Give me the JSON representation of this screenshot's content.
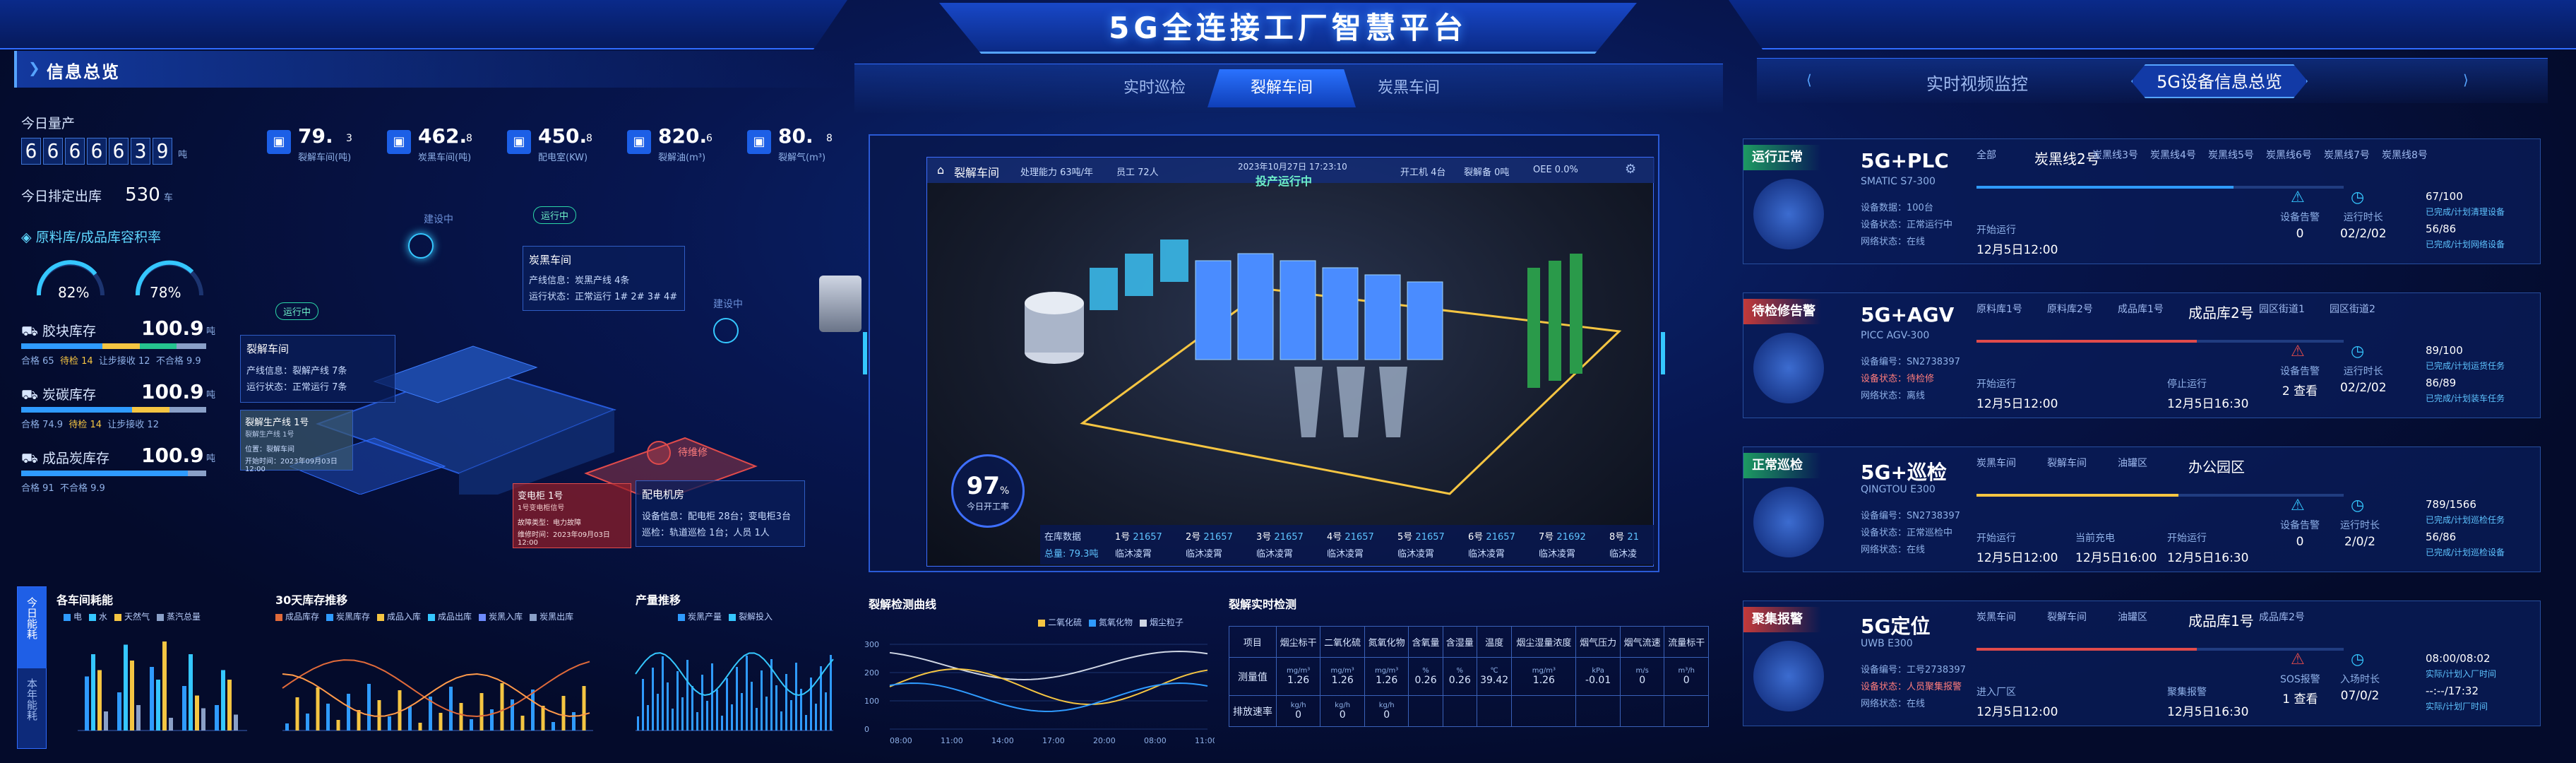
{
  "header": {
    "title": "5G全连接工厂智慧平台"
  },
  "left": {
    "panel_title": "信息总览",
    "today_output_label": "今日量产",
    "today_output_digits": [
      "6",
      "6",
      "6",
      "6",
      "6",
      "3",
      "9"
    ],
    "today_output_unit": "吨",
    "today_plan_label": "今日排定出库",
    "today_plan_value": "530",
    "today_plan_unit": "车",
    "stock_ratio_title": "原料库/成品库容积率",
    "ratio_raw": "82%",
    "ratio_product": "78%",
    "coke_label": "胶块库存",
    "coke_value": "100.9",
    "coke_unit": "吨",
    "coke_legend": [
      "合格 65",
      "待检 14",
      "让步接收 12",
      "不合格 9.9"
    ],
    "carbon_label": "炭碳库存",
    "carbon_value": "100.9",
    "carbon_unit": "吨",
    "carbon_legend": [
      "合格 74.9",
      "待检 14",
      "让步接收 12"
    ],
    "product_label": "成品炭库存",
    "product_value": "100.9",
    "product_unit": "吨",
    "product_legend": [
      "合格 91",
      "不合格 9.9"
    ],
    "kpis": [
      {
        "value": "79.",
        "sub": "3",
        "label": "裂解车间(吨)"
      },
      {
        "value": "462.",
        "sub": "8",
        "label": "炭黑车间(吨)"
      },
      {
        "value": "450.",
        "sub": "8",
        "label": "配电室(KW)"
      },
      {
        "value": "820.",
        "sub": "6",
        "label": "裂解油(m³)"
      },
      {
        "value": "80.",
        "sub": "8",
        "label": "裂解气(m³)"
      }
    ],
    "map": {
      "building_label_1": "建设中",
      "building_label_2": "建设中",
      "status_running": "运行中",
      "status_running2": "运行中",
      "status_warning": "待维修",
      "carbon_card": {
        "title": "炭黑车间",
        "line1": "产线信息：炭黑产线 4条",
        "line2": "运行状态：正常运行 1# 2# 3# 4#"
      },
      "pyro_card": {
        "title": "裂解车间",
        "line1": "产线信息：裂解产线 7条",
        "line2": "运行状态：正常运行 7条"
      },
      "line_card": {
        "title": "裂解生产线 1号",
        "sub": "裂解生产线 1号",
        "l1": "位置：裂解车间",
        "l2": "开始时间：2023年09月03日 12:00"
      },
      "trans_card": {
        "title": "变电柜 1号",
        "sub": "1号变电柜信号",
        "l1": "故障类型：电力故障",
        "l2": "维修时间：2023年09月03日 12:00"
      },
      "power_card": {
        "title": "配电机房",
        "line1": "设备信息：配电柜 28台；变电柜3台",
        "line2": "巡检：轨道巡检 1台；人员 1人"
      }
    },
    "energy": {
      "title": "各车间耗能",
      "side_tabs": [
        "今日能耗",
        "本年能耗"
      ],
      "legend": [
        "电",
        "水",
        "天然气",
        "蒸汽总量"
      ]
    },
    "trend30": {
      "title": "30天库存推移",
      "legend": [
        "成品库存",
        "炭黑库存",
        "成品入库",
        "成品出库",
        "炭黑入库",
        "炭黑出库"
      ]
    },
    "output_trend": {
      "title": "产量推移",
      "legend": [
        "炭黑产量",
        "裂解投入"
      ]
    }
  },
  "center": {
    "tabs": [
      "实时巡检",
      "裂解车间",
      "炭黑车间"
    ],
    "scene_header": {
      "workshop": "裂解车间",
      "capacity": "处理能力 63吨/年",
      "staff": "员工 72人",
      "datetime": "2023年10月27日 17:23:10",
      "running_state": "投产运行中",
      "open_machines": "开工机 4台",
      "stopped": "裂解备 0吨",
      "oee": "OEE 0.0%"
    },
    "gauge_value": "97",
    "gauge_unit": "%",
    "gauge_label": "今日开工率",
    "bottom_strip": {
      "label_top": "在库数据",
      "label_bottom": "总量: 79.3吨",
      "lines": [
        {
          "name": "1号",
          "value": "21657",
          "state": "临沐凌霄"
        },
        {
          "name": "2号",
          "value": "21657",
          "state": "临沐凌霄"
        },
        {
          "name": "3号",
          "value": "21657",
          "state": "临沐凌霄"
        },
        {
          "name": "4号",
          "value": "21657",
          "state": "临沐凌霄"
        },
        {
          "name": "5号",
          "value": "21657",
          "state": "临沐凌霄"
        },
        {
          "name": "6号",
          "value": "21657",
          "state": "临沐凌霄"
        },
        {
          "name": "7号",
          "value": "21692",
          "state": "临沐凌霄"
        },
        {
          "name": "8号",
          "value": "21",
          "state": "临沐凌"
        }
      ]
    },
    "pyro_curve": {
      "title": "裂解检测曲线",
      "legend": [
        "二氧化硫",
        "氮氧化物",
        "烟尘粒子"
      ],
      "x_ticks": [
        "08:00",
        "11:00",
        "14:00",
        "17:00",
        "20:00",
        "08:00",
        "11:00"
      ],
      "y_ticks": [
        "300",
        "200",
        "100",
        "0"
      ]
    },
    "detect": {
      "title": "裂解实时检测",
      "columns": [
        "项目",
        "烟尘标干",
        "二氧化硫",
        "氮氧化物",
        "含氧量",
        "含湿量",
        "温度",
        "烟尘湿量浓度",
        "烟气压力",
        "烟气流速",
        "流量标干"
      ],
      "units": [
        "",
        "mg/m³",
        "mg/m³",
        "mg/m³",
        "%",
        "%",
        "℃",
        "mg/m³",
        "kPa",
        "m/s",
        "m³/h"
      ],
      "row_measure": [
        "测量值",
        "1.26",
        "1.26",
        "1.26",
        "0.26",
        "0.26",
        "39.42",
        "1.26",
        "-0.01",
        "0",
        "0"
      ],
      "row_emission": [
        "排放速率",
        "0",
        "0",
        "0",
        "",
        "",
        "",
        "",
        "",
        "",
        ""
      ],
      "emission_units": [
        "",
        "kg/h",
        "kg/h",
        "kg/h",
        "",
        "",
        "",
        "",
        "",
        "",
        ""
      ]
    }
  },
  "right": {
    "tabs": [
      "实时视频监控",
      "5G设备信息总览"
    ],
    "devices": [
      {
        "badge": "运行正常",
        "title": "5G+PLC",
        "model": "SMATIC S7-300",
        "nav": [
          "全部",
          "炭黑线2号",
          "炭黑线3号",
          "炭黑线4号",
          "炭黑线5号",
          "炭黑线6号",
          "炭黑线7号",
          "炭黑线8号"
        ],
        "rows": [
          "设备数据：100台",
          "设备状态：正常运行中",
          "网络状态：在线"
        ],
        "start_label": "开始运行",
        "start_value": "12月5日12:00",
        "kv1_label": "设备告警",
        "kv1_value": "0",
        "kv2_label": "运行时长",
        "kv2_value": "02/2/02",
        "stats": [
          "67/100",
          "已完成/计划清理设备",
          "56/86",
          "已完成/计划网络设备"
        ]
      },
      {
        "badge": "待检修告警",
        "title": "5G+AGV",
        "model": "PICC AGV-300",
        "nav": [
          "原料库1号",
          "原料库2号",
          "成品库1号",
          "成品库2号",
          "园区街道1",
          "园区街道2"
        ],
        "rows": [
          "设备编号：SN2738397",
          "设备状态：待检修",
          "网络状态：离线"
        ],
        "start_label": "开始运行",
        "start_value": "12月5日12:00",
        "stop_label": "停止运行",
        "stop_value": "12月5日16:30",
        "kv1_label": "设备告警",
        "kv1_value": "2 查看",
        "kv2_label": "运行时长",
        "kv2_value": "02/2/02",
        "stats": [
          "89/100",
          "已完成/计划运货任务",
          "86/89",
          "已完成/计划装车任务"
        ]
      },
      {
        "badge": "正常巡检",
        "title": "5G+巡检",
        "model": "QINGTOU E300",
        "nav": [
          "炭黑车间",
          "裂解车间",
          "油罐区",
          "办公园区"
        ],
        "rows": [
          "设备编号：SN2738397",
          "设备状态：正常巡检中",
          "网络状态：在线"
        ],
        "start_label": "开始运行",
        "start_value": "12月5日12:00",
        "mid_label": "当前充电",
        "mid_value": "12月5日16:00",
        "stop_label": "开始运行",
        "stop_value": "12月5日16:30",
        "kv1_label": "设备告警",
        "kv1_value": "0",
        "kv2_label": "运行时长",
        "kv2_value": "2/0/2",
        "stats": [
          "789/1566",
          "已完成/计划巡检任务",
          "56/86",
          "已完成/计划巡检设备"
        ]
      },
      {
        "badge": "聚集报警",
        "title": "5G定位",
        "model": "UWB E300",
        "nav": [
          "炭黑车间",
          "裂解车间",
          "油罐区",
          "成品库1号",
          "成品库2号"
        ],
        "rows": [
          "设备编号：工号2738397",
          "设备状态：人员聚集报警",
          "网络状态：在线"
        ],
        "start_label": "进入厂区",
        "start_value": "12月5日12:00",
        "stop_label": "聚集报警",
        "stop_value": "12月5日16:30",
        "kv1_label": "SOS报警",
        "kv1_value": "1 查看",
        "kv2_label": "入场时长",
        "kv2_value": "07/0/2",
        "stats": [
          "08:00/08:02",
          "实际/计划入厂时间",
          "--:--/17:32",
          "实际/计划厂时间"
        ]
      }
    ]
  },
  "colors": {
    "accent": "#2f6cff",
    "ok": "#25c48f",
    "warn": "#e14b4b",
    "yellow": "#f5c542",
    "cyan": "#35c7ff"
  }
}
